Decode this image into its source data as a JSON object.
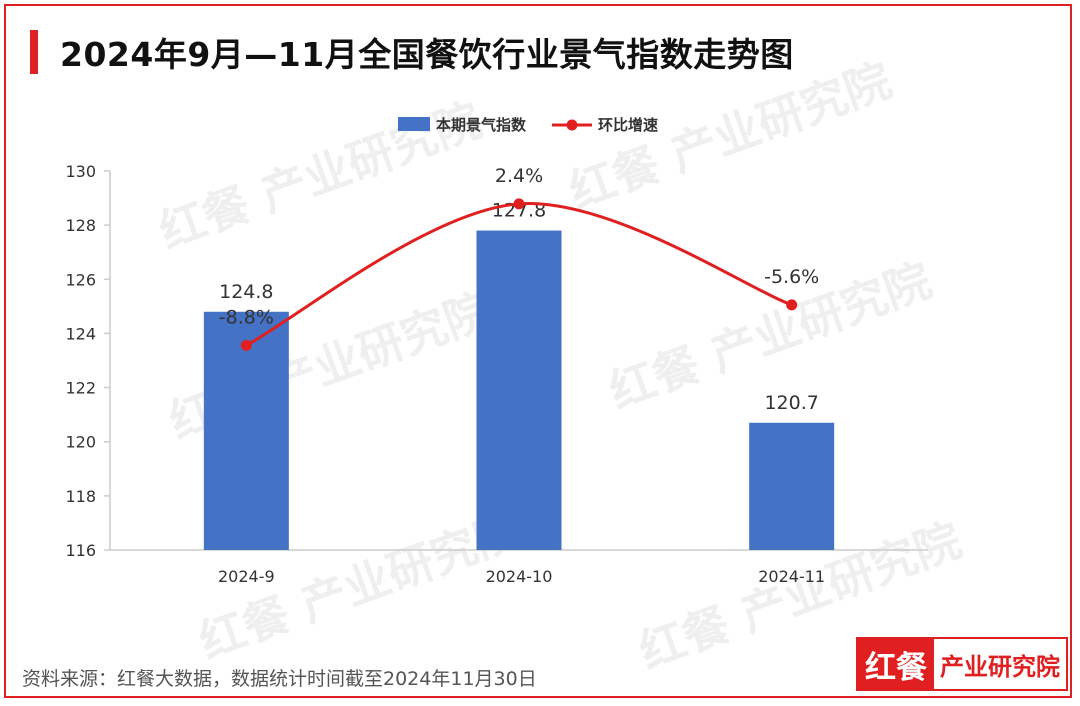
{
  "title": "2024年9月—11月全国餐饮行业景气指数走势图",
  "footer": {
    "source": "资料来源：红餐大数据，数据统计时间截至2024年11月30日"
  },
  "brand": {
    "mark": "红餐",
    "name": "产业研究院"
  },
  "watermark": "红餐 产业研究院",
  "colors": {
    "bar": "#4472c4",
    "line": "#e02020",
    "axis": "#cccccc",
    "text": "#333333"
  },
  "chart_data": {
    "type": "bar",
    "categories": [
      "2024-9",
      "2024-10",
      "2024-11"
    ],
    "series": [
      {
        "name": "本期景气指数",
        "kind": "bar",
        "values": [
          124.8,
          127.8,
          120.7
        ],
        "labels": [
          "124.8",
          "127.8",
          "120.7"
        ]
      },
      {
        "name": "环比增速",
        "kind": "line",
        "values": [
          -8.8,
          2.4,
          -5.6
        ],
        "labels": [
          "-8.8%",
          "2.4%",
          "-5.6%"
        ]
      }
    ],
    "ylim": [
      116,
      130
    ],
    "yticks": [
      116,
      118,
      120,
      122,
      124,
      126,
      128,
      130
    ],
    "secondary_ylim": [
      -25,
      5
    ],
    "legend": "top-center",
    "grid": false
  }
}
